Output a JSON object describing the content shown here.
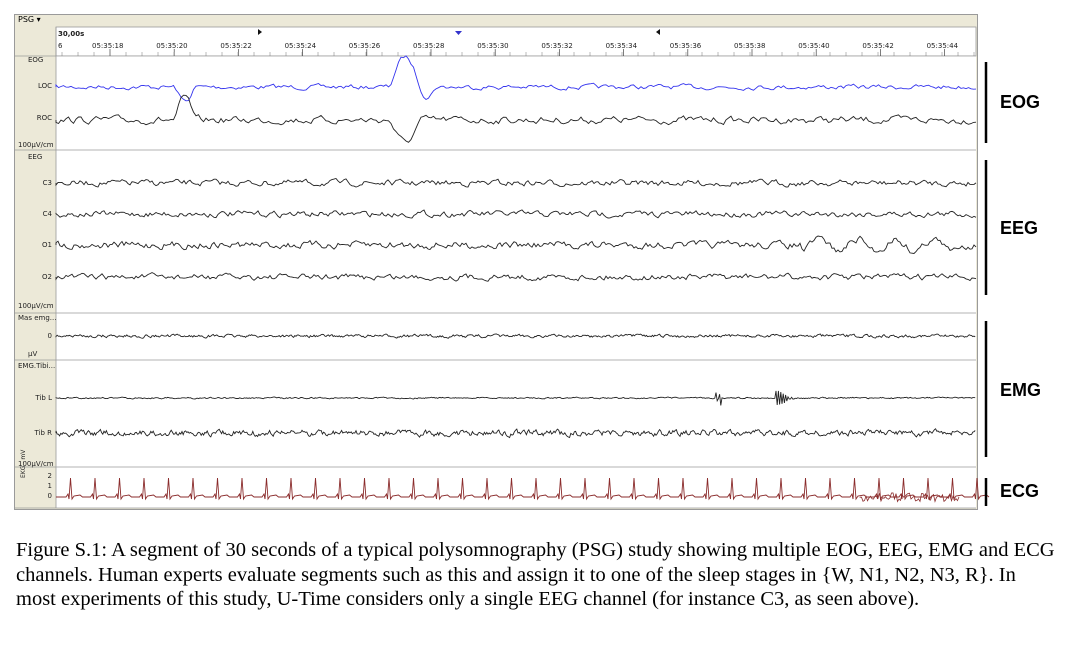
{
  "viewer": {
    "menu_label": "PSG ▾",
    "epoch_length": "30,00s",
    "first_tick": "6",
    "time_ticks": [
      "05:35:18",
      "05:35:20",
      "05:35:22",
      "05:35:24",
      "05:35:26",
      "05:35:28",
      "05:35:30",
      "05:35:32",
      "05:35:34",
      "05:35:36",
      "05:35:38",
      "05:35:40",
      "05:35:42",
      "05:35:44"
    ]
  },
  "groups": [
    {
      "name": "EOG",
      "header": "EOG",
      "scale": "100µV/cm",
      "channels": [
        "LOC",
        "ROC"
      ]
    },
    {
      "name": "EEG",
      "header": "EEG",
      "scale": "100µV/cm",
      "channels": [
        "C3",
        "C4",
        "O1",
        "O2"
      ]
    },
    {
      "name": "EMG",
      "header": "Mas emg...",
      "scale": "µV",
      "channels": [
        "0"
      ]
    },
    {
      "name": "EMG2",
      "header": "EMG.Tibi...",
      "scale": "100µV/cm",
      "channels": [
        "Tib L",
        "Tib R"
      ]
    },
    {
      "name": "ECG",
      "header": "EKG - mV",
      "scale": "",
      "channels": [
        "2",
        "1",
        "0"
      ]
    }
  ],
  "side_labels": {
    "eog": "EOG",
    "eeg": "EEG",
    "emg": "EMG",
    "ecg": "ECG"
  },
  "colors": {
    "loc_trace": "#3333ee",
    "trace": "#222222",
    "ecg_trace": "#8b2c2c",
    "panel_bg": "#ece9d8",
    "marker_blue": "#3333cc"
  },
  "caption": "Figure S.1: A segment of 30 seconds of a typical polysomnography (PSG) study showing multiple EOG, EEG, EMG and ECG channels. Human experts evaluate segments such as this and assign it to one of the sleep stages in {W, N1, N2, N3, R}. In most experiments of this study, U-Time considers only a single EEG channel (for instance C3, as seen above)."
}
